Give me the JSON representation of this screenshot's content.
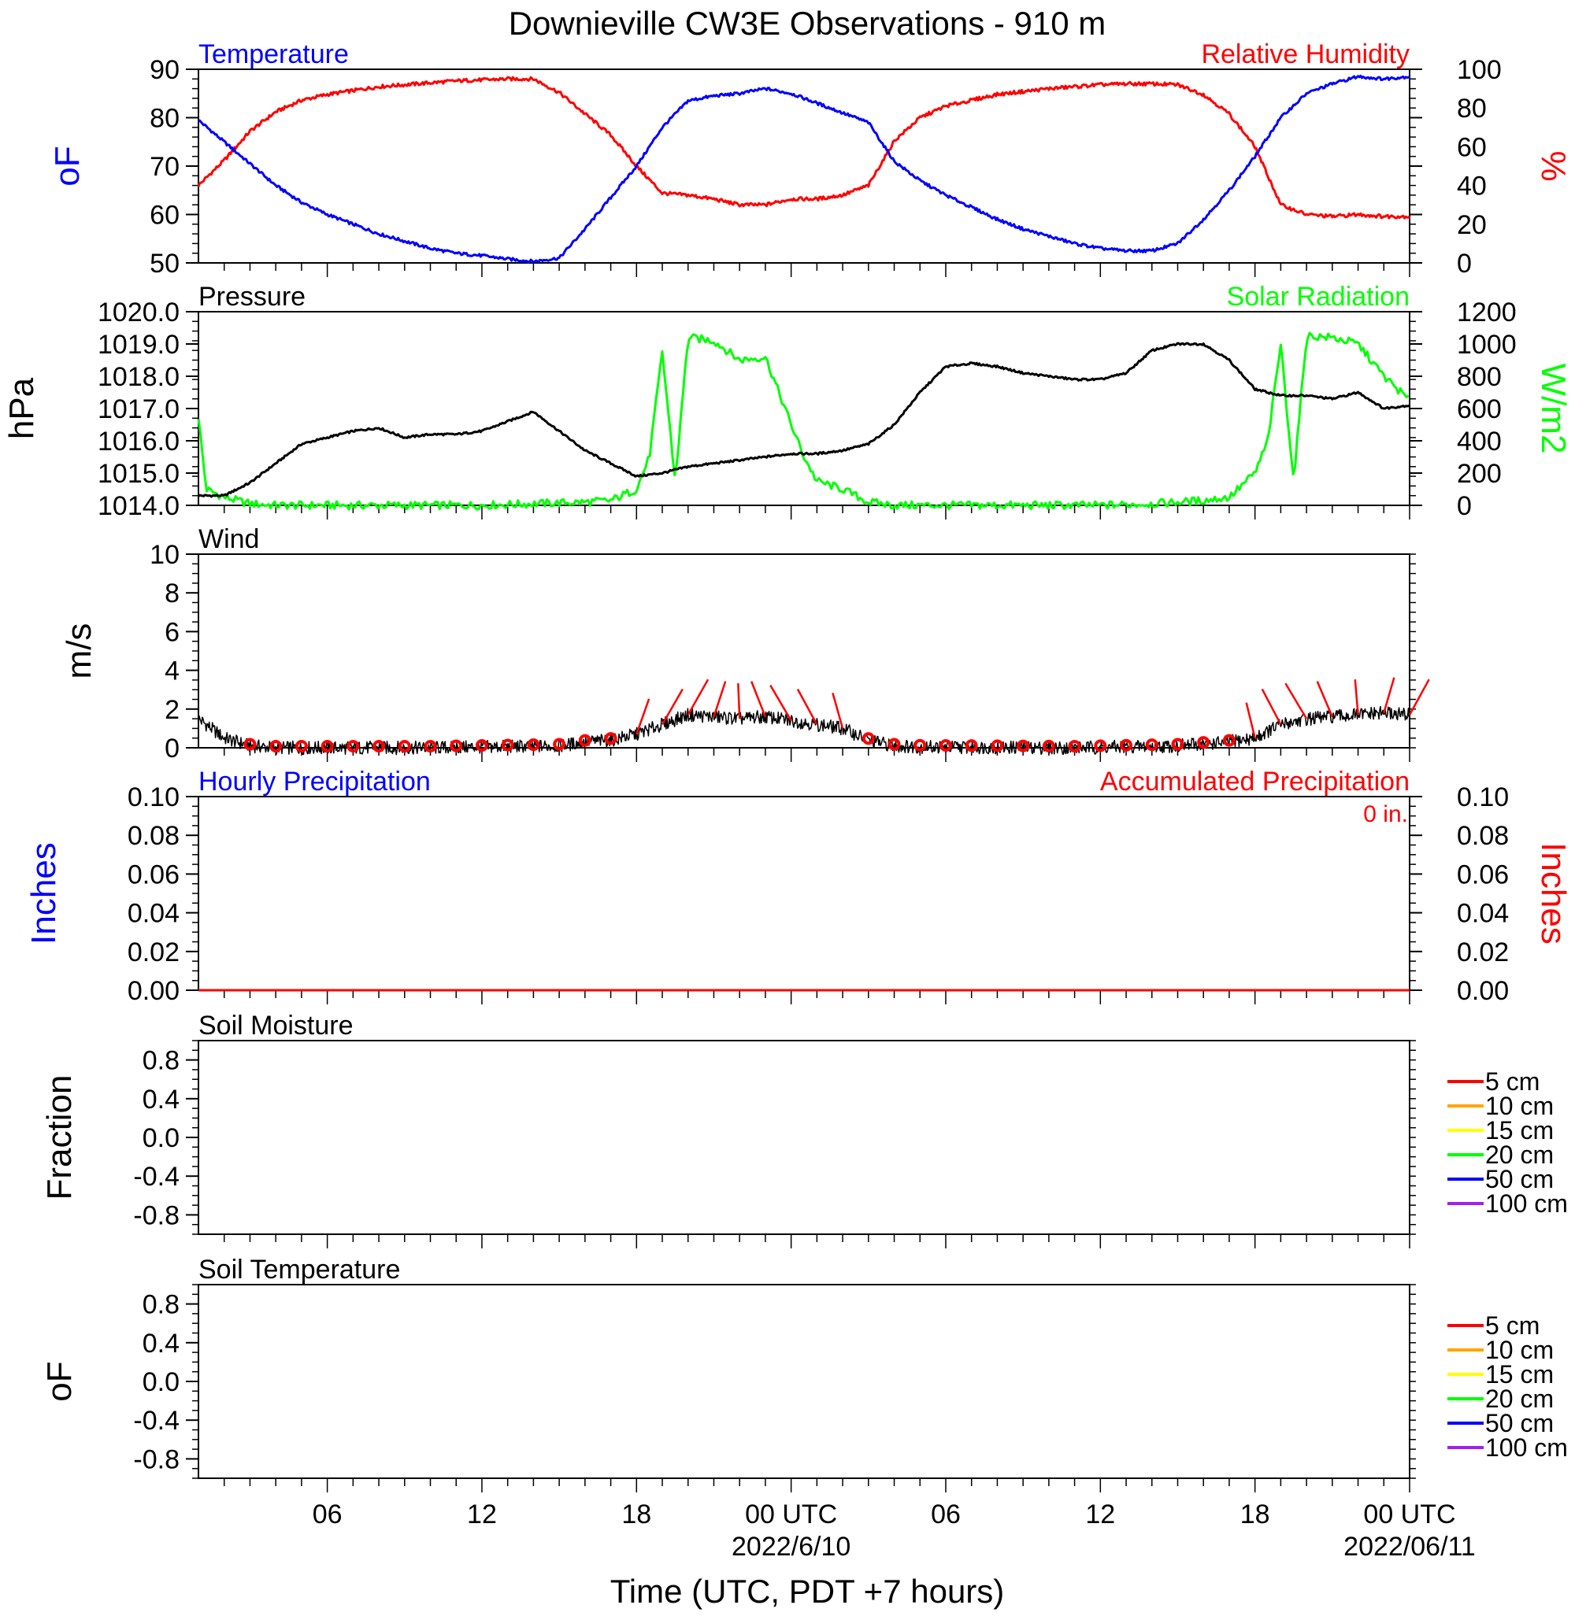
{
  "title": "Downieville CW3E Observations - 910 m",
  "xlabel": "Time (UTC, PDT +7 hours)",
  "x_ticks": [
    {
      "hour": 6,
      "label": "06",
      "date": ""
    },
    {
      "hour": 12,
      "label": "12",
      "date": ""
    },
    {
      "hour": 18,
      "label": "18",
      "date": ""
    },
    {
      "hour": 24,
      "label": "00 UTC",
      "date": "2022/6/10"
    },
    {
      "hour": 30,
      "label": "06",
      "date": ""
    },
    {
      "hour": 36,
      "label": "12",
      "date": ""
    },
    {
      "hour": 42,
      "label": "18",
      "date": ""
    },
    {
      "hour": 48,
      "label": "00 UTC",
      "date": "2022/06/11"
    }
  ],
  "x_range_hours": [
    1,
    48
  ],
  "colors": {
    "temperature": "#0000ff",
    "humidity": "#ff0000",
    "pressure": "#000000",
    "solar": "#00ff00",
    "wind": "#000000",
    "wind_barb": "#ff0000",
    "hourly_precip": "#0000ff",
    "accum_precip": "#ff0000"
  },
  "panels": {
    "temp_rh": {
      "left_title": "Temperature",
      "right_title": "Relative Humidity",
      "left_units": "oF",
      "right_units": "%",
      "left_ticks": [
        "90",
        "80",
        "70",
        "60",
        "50"
      ],
      "right_ticks": [
        "100",
        "80",
        "60",
        "40",
        "20",
        "0"
      ],
      "left_range": [
        50,
        90
      ],
      "right_range": [
        0,
        100
      ]
    },
    "pressure_solar": {
      "left_title": "Pressure",
      "right_title": "Solar Radiation",
      "left_units": "hPa",
      "right_units": "W/m2",
      "left_ticks": [
        "1020.0",
        "1019.0",
        "1018.0",
        "1017.0",
        "1016.0",
        "1015.0",
        "1014.0"
      ],
      "right_ticks": [
        "1200",
        "1000",
        "800",
        "600",
        "400",
        "200",
        "0"
      ],
      "left_range": [
        1014,
        1020
      ],
      "right_range": [
        0,
        1200
      ]
    },
    "wind": {
      "left_title": "Wind",
      "left_units": "m/s",
      "left_ticks": [
        "10",
        "8",
        "6",
        "4",
        "2",
        "0"
      ],
      "left_range": [
        0,
        10
      ]
    },
    "precip": {
      "left_title": "Hourly Precipitation",
      "right_title": "Accumulated Precipitation",
      "accum_label": "0 in.",
      "left_units": "Inches",
      "right_units": "Inches",
      "left_ticks": [
        "0.10",
        "0.08",
        "0.06",
        "0.04",
        "0.02",
        "0.00"
      ],
      "right_ticks": [
        "0.10",
        "0.08",
        "0.06",
        "0.04",
        "0.02",
        "0.00"
      ],
      "left_range": [
        0,
        0.1
      ]
    },
    "soil_moisture": {
      "left_title": "Soil Moisture",
      "left_units": "Fraction",
      "left_ticks": [
        "0.8",
        "0.4",
        "0.0",
        "-0.4",
        "-0.8"
      ],
      "left_range": [
        -1,
        1
      ]
    },
    "soil_temperature": {
      "left_title": "Soil Temperature",
      "left_units": "oF",
      "left_ticks": [
        "0.8",
        "0.4",
        "0.0",
        "-0.4",
        "-0.8"
      ],
      "left_range": [
        -1,
        1
      ]
    }
  },
  "soil_legend": [
    {
      "label": "5 cm",
      "color": "#ff0000"
    },
    {
      "label": "10 cm",
      "color": "#ffa500"
    },
    {
      "label": "15 cm",
      "color": "#ffff00"
    },
    {
      "label": "20 cm",
      "color": "#00ff00"
    },
    {
      "label": "50 cm",
      "color": "#0000ff"
    },
    {
      "label": "100 cm",
      "color": "#a020f0"
    }
  ],
  "chart_data": {
    "type": "line",
    "temperature_f": [
      [
        1,
        79.5
      ],
      [
        2,
        75
      ],
      [
        3,
        70.5
      ],
      [
        4,
        66
      ],
      [
        5,
        62.5
      ],
      [
        6,
        60
      ],
      [
        7,
        58
      ],
      [
        8,
        56
      ],
      [
        9,
        54.5
      ],
      [
        10,
        53
      ],
      [
        11,
        52
      ],
      [
        12,
        51.5
      ],
      [
        13,
        50.8
      ],
      [
        14,
        50.3
      ],
      [
        15,
        51
      ],
      [
        16,
        57
      ],
      [
        17,
        63.5
      ],
      [
        18,
        70
      ],
      [
        19,
        78
      ],
      [
        20,
        83.5
      ],
      [
        21,
        84.5
      ],
      [
        22,
        85
      ],
      [
        23,
        86
      ],
      [
        24,
        85
      ],
      [
        25,
        83
      ],
      [
        26,
        81
      ],
      [
        27,
        79
      ],
      [
        28,
        71
      ],
      [
        29,
        67
      ],
      [
        30,
        64
      ],
      [
        31,
        61.5
      ],
      [
        32,
        59
      ],
      [
        33,
        57
      ],
      [
        34,
        55.5
      ],
      [
        35,
        54
      ],
      [
        36,
        53
      ],
      [
        37,
        52.5
      ],
      [
        38,
        52.5
      ],
      [
        39,
        54
      ],
      [
        40,
        59
      ],
      [
        41,
        65
      ],
      [
        42,
        72
      ],
      [
        43,
        80
      ],
      [
        44,
        85
      ],
      [
        45,
        87
      ],
      [
        46,
        88.5
      ],
      [
        47,
        88
      ],
      [
        48,
        88.5
      ]
    ],
    "relative_humidity_pct": [
      [
        1,
        40
      ],
      [
        2,
        53
      ],
      [
        3,
        68
      ],
      [
        4,
        78
      ],
      [
        5,
        84
      ],
      [
        6,
        87
      ],
      [
        7,
        89
      ],
      [
        8,
        91
      ],
      [
        9,
        92
      ],
      [
        10,
        93
      ],
      [
        11,
        94
      ],
      [
        12,
        94.5
      ],
      [
        13,
        95
      ],
      [
        14,
        95
      ],
      [
        15,
        88
      ],
      [
        16,
        77
      ],
      [
        17,
        66
      ],
      [
        18,
        50
      ],
      [
        19,
        36
      ],
      [
        20,
        35
      ],
      [
        21,
        33
      ],
      [
        22,
        30
      ],
      [
        23,
        30
      ],
      [
        24,
        33
      ],
      [
        25,
        33
      ],
      [
        26,
        35
      ],
      [
        27,
        40
      ],
      [
        28,
        63
      ],
      [
        29,
        75
      ],
      [
        30,
        81
      ],
      [
        31,
        84
      ],
      [
        32,
        87
      ],
      [
        33,
        88.5
      ],
      [
        34,
        90
      ],
      [
        35,
        91
      ],
      [
        36,
        92
      ],
      [
        37,
        92.5
      ],
      [
        38,
        92.5
      ],
      [
        39,
        92
      ],
      [
        40,
        87
      ],
      [
        41,
        77
      ],
      [
        42,
        60
      ],
      [
        43,
        30
      ],
      [
        44,
        25
      ],
      [
        45,
        24
      ],
      [
        46,
        25
      ],
      [
        47,
        24
      ],
      [
        48,
        24
      ]
    ],
    "pressure_hpa": [
      [
        1,
        1014.3
      ],
      [
        2,
        1014.3
      ],
      [
        3,
        1014.7
      ],
      [
        4,
        1015.3
      ],
      [
        5,
        1015.9
      ],
      [
        6,
        1016.1
      ],
      [
        7,
        1016.3
      ],
      [
        8,
        1016.4
      ],
      [
        9,
        1016.1
      ],
      [
        10,
        1016.2
      ],
      [
        11,
        1016.2
      ],
      [
        12,
        1016.3
      ],
      [
        13,
        1016.6
      ],
      [
        14,
        1016.9
      ],
      [
        15,
        1016.3
      ],
      [
        16,
        1015.7
      ],
      [
        17,
        1015.3
      ],
      [
        18,
        1014.9
      ],
      [
        19,
        1015.0
      ],
      [
        20,
        1015.2
      ],
      [
        21,
        1015.3
      ],
      [
        22,
        1015.4
      ],
      [
        23,
        1015.5
      ],
      [
        24,
        1015.6
      ],
      [
        25,
        1015.6
      ],
      [
        26,
        1015.7
      ],
      [
        27,
        1015.9
      ],
      [
        28,
        1016.5
      ],
      [
        29,
        1017.5
      ],
      [
        30,
        1018.3
      ],
      [
        31,
        1018.4
      ],
      [
        32,
        1018.3
      ],
      [
        33,
        1018.1
      ],
      [
        34,
        1018.0
      ],
      [
        35,
        1017.9
      ],
      [
        36,
        1017.9
      ],
      [
        37,
        1018.1
      ],
      [
        38,
        1018.8
      ],
      [
        39,
        1019.0
      ],
      [
        40,
        1019.0
      ],
      [
        41,
        1018.5
      ],
      [
        42,
        1017.6
      ],
      [
        43,
        1017.4
      ],
      [
        44,
        1017.4
      ],
      [
        45,
        1017.3
      ],
      [
        46,
        1017.5
      ],
      [
        47,
        1017.0
      ],
      [
        48,
        1017.1
      ]
    ],
    "solar_radiation_wm2": [
      [
        1,
        550
      ],
      [
        1.3,
        100
      ],
      [
        2,
        50
      ],
      [
        3,
        10
      ],
      [
        4,
        0
      ],
      [
        6,
        0
      ],
      [
        12,
        0
      ],
      [
        14,
        10
      ],
      [
        16,
        20
      ],
      [
        17,
        30
      ],
      [
        18,
        100
      ],
      [
        18.5,
        300
      ],
      [
        19,
        950
      ],
      [
        19.5,
        150
      ],
      [
        20,
        1040
      ],
      [
        21,
        1020
      ],
      [
        22,
        900
      ],
      [
        23,
        920
      ],
      [
        24,
        500
      ],
      [
        24.5,
        300
      ],
      [
        25,
        150
      ],
      [
        26,
        100
      ],
      [
        27,
        20
      ],
      [
        28,
        0
      ],
      [
        30,
        0
      ],
      [
        36,
        0
      ],
      [
        38,
        10
      ],
      [
        40,
        30
      ],
      [
        41,
        50
      ],
      [
        42,
        200
      ],
      [
        42.5,
        400
      ],
      [
        43,
        1000
      ],
      [
        43.5,
        150
      ],
      [
        44,
        1050
      ],
      [
        45,
        1040
      ],
      [
        46,
        1000
      ],
      [
        47,
        800
      ],
      [
        48,
        650
      ]
    ],
    "wind_speed_ms": [
      [
        1,
        1.5
      ],
      [
        2,
        0.5
      ],
      [
        3,
        0.1
      ],
      [
        4,
        0
      ],
      [
        10,
        0
      ],
      [
        15,
        0.1
      ],
      [
        16,
        0.3
      ],
      [
        17,
        0.4
      ],
      [
        18,
        0.7
      ],
      [
        19,
        1.2
      ],
      [
        20,
        1.7
      ],
      [
        21,
        1.6
      ],
      [
        22,
        1.5
      ],
      [
        23,
        1.6
      ],
      [
        24,
        1.4
      ],
      [
        25,
        1.2
      ],
      [
        26,
        1.0
      ],
      [
        27,
        0.4
      ],
      [
        28,
        0.1
      ],
      [
        29,
        0.05
      ],
      [
        35,
        0
      ],
      [
        39,
        0.1
      ],
      [
        40,
        0.2
      ],
      [
        41,
        0.3
      ],
      [
        42,
        0.5
      ],
      [
        43,
        1.2
      ],
      [
        44,
        1.5
      ],
      [
        45,
        1.6
      ],
      [
        46,
        1.7
      ],
      [
        47,
        1.8
      ],
      [
        48,
        1.7
      ]
    ],
    "wind_barb_hours": [
      3,
      4,
      5,
      6,
      7,
      8,
      9,
      10,
      11,
      12,
      13,
      14,
      15,
      16,
      17,
      18,
      19,
      20,
      21,
      22,
      23,
      24,
      25,
      26,
      27,
      28,
      29,
      30,
      31,
      32,
      33,
      34,
      35,
      36,
      37,
      38,
      39,
      40,
      41,
      42,
      43,
      44,
      45,
      46,
      47,
      48
    ],
    "hourly_precip_in": [
      [
        1,
        0
      ],
      [
        48,
        0
      ]
    ],
    "accumulated_precip_in": [
      [
        1,
        0
      ],
      [
        48,
        0
      ]
    ],
    "soil_moisture_fraction": [],
    "soil_temperature_f": []
  }
}
